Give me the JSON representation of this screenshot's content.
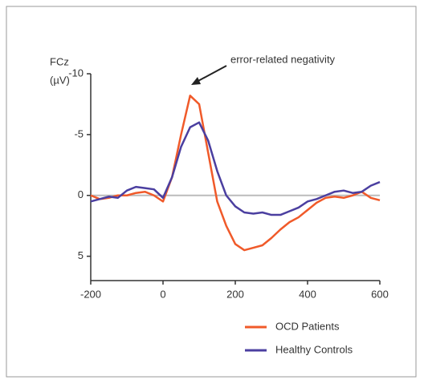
{
  "chart_data": {
    "type": "line",
    "y_label": [
      "FCz",
      "(µV)"
    ],
    "annotation": "error-related negativity",
    "x": [
      -200,
      -175,
      -150,
      -125,
      -100,
      -75,
      -50,
      -25,
      0,
      25,
      50,
      75,
      100,
      125,
      150,
      175,
      200,
      225,
      250,
      275,
      300,
      325,
      350,
      375,
      400,
      425,
      450,
      475,
      500,
      525,
      550,
      575,
      600
    ],
    "series": [
      {
        "name": "OCD Patients",
        "color": "#f05a2a",
        "values": [
          0,
          0.3,
          0.2,
          0,
          0,
          -0.2,
          -0.3,
          0,
          0.5,
          -1.5,
          -5,
          -8.2,
          -7.5,
          -3.5,
          0.5,
          2.5,
          4,
          4.5,
          4.3,
          4.1,
          3.5,
          2.8,
          2.2,
          1.8,
          1.2,
          0.6,
          0.2,
          0.1,
          0.2,
          0,
          -0.3,
          0.2,
          0.4
        ]
      },
      {
        "name": "Healthy Controls",
        "color": "#4b3fa0",
        "values": [
          0.5,
          0.3,
          0.1,
          0.2,
          -0.4,
          -0.7,
          -0.6,
          -0.5,
          0.2,
          -1.5,
          -4,
          -5.6,
          -6,
          -4.5,
          -2,
          0,
          0.9,
          1.4,
          1.5,
          1.4,
          1.6,
          1.6,
          1.3,
          1,
          0.5,
          0.3,
          0,
          -0.3,
          -0.4,
          -0.2,
          -0.3,
          -0.8,
          -1.1
        ]
      }
    ],
    "xlim": [
      -200,
      600
    ],
    "xticks": [
      -200,
      0,
      200,
      400,
      600
    ],
    "ylim": [
      -10,
      7
    ],
    "yticks": [
      -10,
      -5,
      0,
      5
    ],
    "invert_y": true,
    "zero_line": true,
    "legend": "bottom-right"
  }
}
